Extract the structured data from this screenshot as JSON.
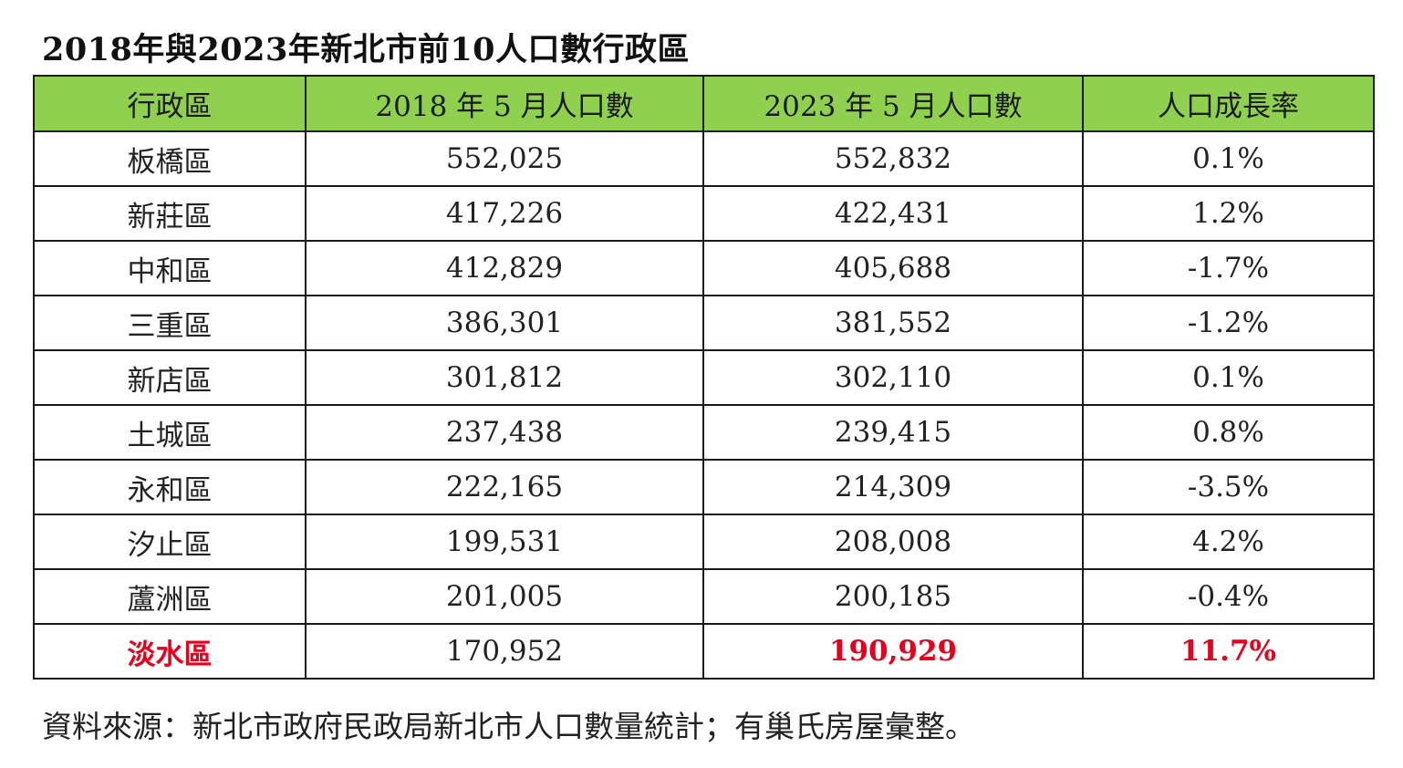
{
  "title": "2018年與2023年新北市前10人口數行政區",
  "header_color": "#8fd14f",
  "highlight_color": "#e8001c",
  "table": {
    "headers": [
      "行政區",
      "2018 年 5 月人口數",
      "2023 年 5 月人口數",
      "人口成長率"
    ],
    "rows": [
      {
        "district": "板橋區",
        "pop2018": "552,025",
        "pop2023": "552,832",
        "growth": "0.1%"
      },
      {
        "district": "新莊區",
        "pop2018": "417,226",
        "pop2023": "422,431",
        "growth": "1.2%"
      },
      {
        "district": "中和區",
        "pop2018": "412,829",
        "pop2023": "405,688",
        "growth": "-1.7%"
      },
      {
        "district": "三重區",
        "pop2018": "386,301",
        "pop2023": "381,552",
        "growth": "-1.2%"
      },
      {
        "district": "新店區",
        "pop2018": "301,812",
        "pop2023": "302,110",
        "growth": "0.1%"
      },
      {
        "district": "土城區",
        "pop2018": "237,438",
        "pop2023": "239,415",
        "growth": "0.8%"
      },
      {
        "district": "永和區",
        "pop2018": "222,165",
        "pop2023": "214,309",
        "growth": "-3.5%"
      },
      {
        "district": "汐止區",
        "pop2018": "199,531",
        "pop2023": "208,008",
        "growth": "4.2%"
      },
      {
        "district": "蘆洲區",
        "pop2018": "201,005",
        "pop2023": "200,185",
        "growth": "-0.4%"
      },
      {
        "district": "淡水區",
        "pop2018": "170,952",
        "pop2023": "190,929",
        "growth": "11.7%",
        "highlight": true
      }
    ]
  },
  "source": "資料來源：新北市政府民政局新北市人口數量統計；有巢氏房屋彙整。"
}
